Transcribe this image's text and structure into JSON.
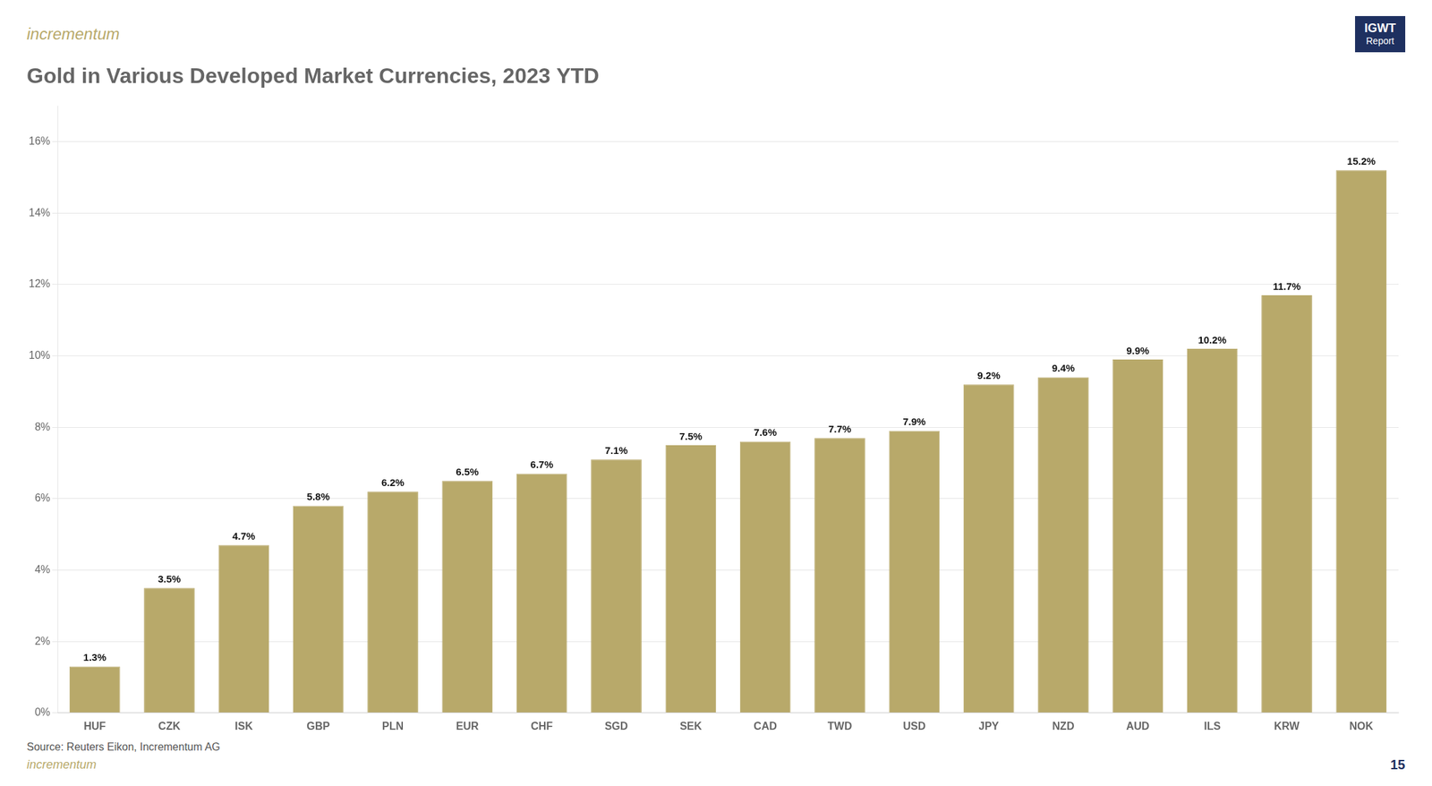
{
  "chart_data": {
    "type": "bar",
    "title": "Gold in Various Developed Market Currencies, 2023 YTD",
    "categories": [
      "HUF",
      "CZK",
      "ISK",
      "GBP",
      "PLN",
      "EUR",
      "CHF",
      "SGD",
      "SEK",
      "CAD",
      "TWD",
      "USD",
      "JPY",
      "NZD",
      "AUD",
      "ILS",
      "KRW",
      "NOK"
    ],
    "values": [
      1.3,
      3.5,
      4.7,
      5.8,
      6.2,
      6.5,
      6.7,
      7.1,
      7.5,
      7.6,
      7.7,
      7.9,
      9.2,
      9.4,
      9.9,
      10.2,
      11.7,
      15.2
    ],
    "value_labels": [
      "1.3%",
      "3.5%",
      "4.7%",
      "5.8%",
      "6.2%",
      "6.5%",
      "6.7%",
      "7.1%",
      "7.5%",
      "7.6%",
      "7.7%",
      "7.9%",
      "9.2%",
      "9.4%",
      "9.9%",
      "10.2%",
      "11.7%",
      "15.2%"
    ],
    "data_labels": true,
    "color": "#B8A96A",
    "ylim": [
      0,
      17
    ],
    "yticks": [
      {
        "value": 0,
        "label": "0%"
      },
      {
        "value": 2,
        "label": "2%"
      },
      {
        "value": 4,
        "label": "4%"
      },
      {
        "value": 6,
        "label": "6%"
      },
      {
        "value": 8,
        "label": "8%"
      },
      {
        "value": 10,
        "label": "10%"
      },
      {
        "value": 12,
        "label": "12%"
      },
      {
        "value": 14,
        "label": "14%"
      },
      {
        "value": 16,
        "label": "16%"
      }
    ],
    "grid": true,
    "annotations": [
      "incrementum",
      "IGWT",
      "Report",
      "Source: Reuters Eikon, Incrementum AG",
      "15"
    ]
  }
}
